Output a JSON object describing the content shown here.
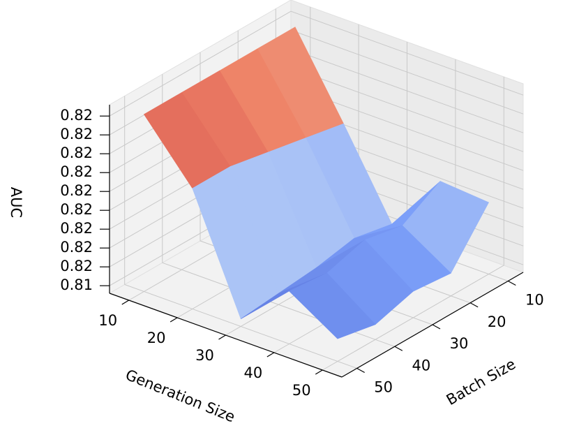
{
  "chart_data": {
    "type": "surface",
    "xlabel": "Generation Size",
    "ylabel": "Batch Size",
    "zlabel": "AUC",
    "x": [
      10,
      20,
      30,
      40,
      50
    ],
    "y": [
      10,
      20,
      30,
      40,
      50
    ],
    "z": [
      [
        0.8193,
        0.8193,
        0.8193,
        0.8193,
        0.8193
      ],
      [
        0.8172,
        0.8174,
        0.8176,
        0.8178,
        0.8178
      ],
      [
        0.815,
        0.8152,
        0.815,
        0.8149,
        0.8148
      ],
      [
        0.8166,
        0.816,
        0.8162,
        0.8159,
        0.816
      ],
      [
        0.8165,
        0.8152,
        0.8153,
        0.815,
        0.8152
      ]
    ],
    "xlim": [
      6,
      54
    ],
    "ylim": [
      6,
      54
    ],
    "zlim": [
      0.8146,
      0.8196
    ],
    "xticks": [
      10,
      20,
      30,
      40,
      50
    ],
    "yticks": [
      10,
      20,
      30,
      40,
      50
    ],
    "zticks": [
      {
        "value": 0.8148,
        "label": "0.81"
      },
      {
        "value": 0.8153,
        "label": "0.82"
      },
      {
        "value": 0.8158,
        "label": "0.82"
      },
      {
        "value": 0.8163,
        "label": "0.82"
      },
      {
        "value": 0.8168,
        "label": "0.82"
      },
      {
        "value": 0.8173,
        "label": "0.82"
      },
      {
        "value": 0.8178,
        "label": "0.82"
      },
      {
        "value": 0.8183,
        "label": "0.82"
      },
      {
        "value": 0.8188,
        "label": "0.82"
      },
      {
        "value": 0.8193,
        "label": "0.82"
      }
    ],
    "colormap": "coolwarm",
    "grid": true
  }
}
